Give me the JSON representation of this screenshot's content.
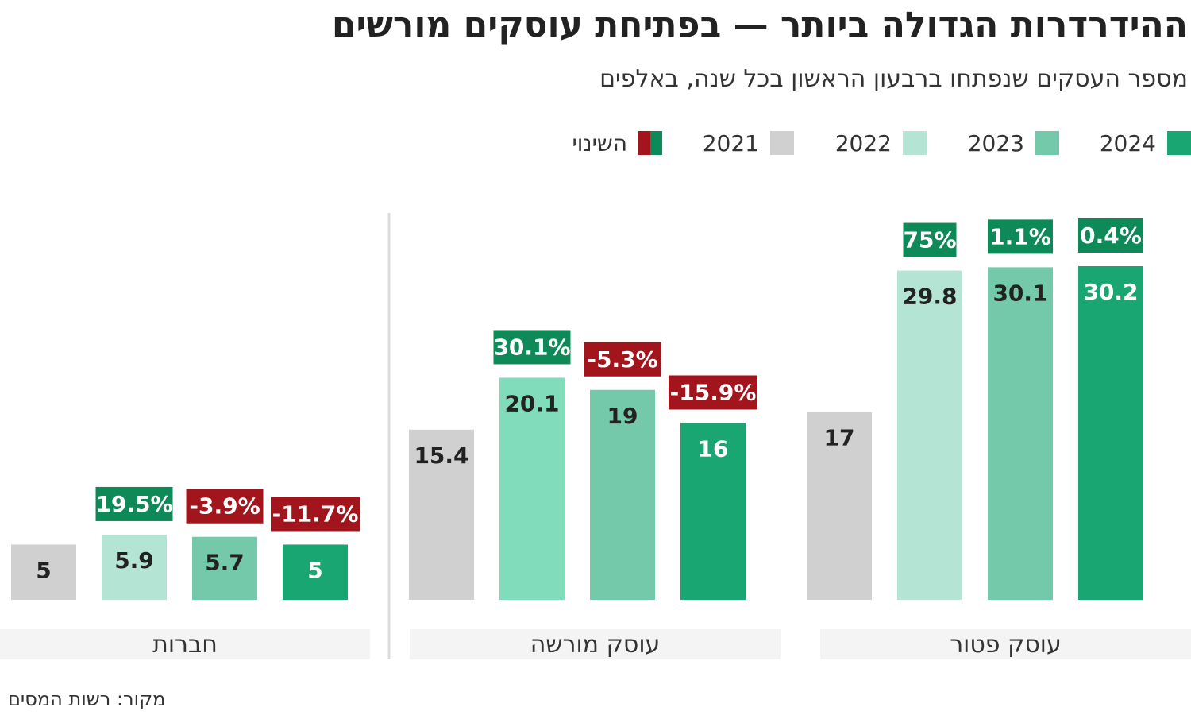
{
  "title": "ההידרדרות הגדולה ביותר — בפתיחת עוסקים מורשים",
  "subtitle": "מספר העסקים שנפתחו ברבעון הראשון בכל שנה, באלפים",
  "source": "מקור: רשות המסים",
  "legend": {
    "y2024": "2024",
    "y2023": "2023",
    "y2022": "2022",
    "y2021": "2021",
    "change": "השינוי"
  },
  "colors": {
    "y2024": "#1aa673",
    "y2023": "#74c9ab",
    "y2022_exempt": "#b4e4d3",
    "y2022_licensed": "#80dcbb",
    "y2022_companies": "#b4e4d3",
    "y2021": "#d0d0d0",
    "increase": "#0d8a57",
    "decrease": "#a3151d",
    "label_bg": "#f4f4f4"
  },
  "chart_data": {
    "type": "bar",
    "series_order": [
      "2021",
      "2022",
      "2023",
      "2024"
    ],
    "groups": [
      {
        "name": "עוסק פטור",
        "values": [
          17,
          29.8,
          30.1,
          30.2
        ],
        "labels": [
          "17",
          "29.8",
          "30.1",
          "30.2"
        ],
        "changes": [
          null,
          "75%",
          "1.1%",
          "0.4%"
        ],
        "change_values": [
          null,
          75,
          1.1,
          0.4
        ]
      },
      {
        "name": "עוסק מורשה",
        "values": [
          15.4,
          20.1,
          19,
          16
        ],
        "labels": [
          "15.4",
          "20.1",
          "19",
          "16"
        ],
        "changes": [
          null,
          "30.1%",
          "-5.3%",
          "-15.9%"
        ],
        "change_values": [
          null,
          30.1,
          -5.3,
          -15.9
        ]
      },
      {
        "name": "חברות",
        "values": [
          5,
          5.9,
          5.7,
          5
        ],
        "labels": [
          "5",
          "5.9",
          "5.7",
          "5"
        ],
        "changes": [
          null,
          "19.5%",
          "-3.9%",
          "-11.7%"
        ],
        "change_values": [
          null,
          19.5,
          -3.9,
          -11.7
        ]
      }
    ]
  }
}
